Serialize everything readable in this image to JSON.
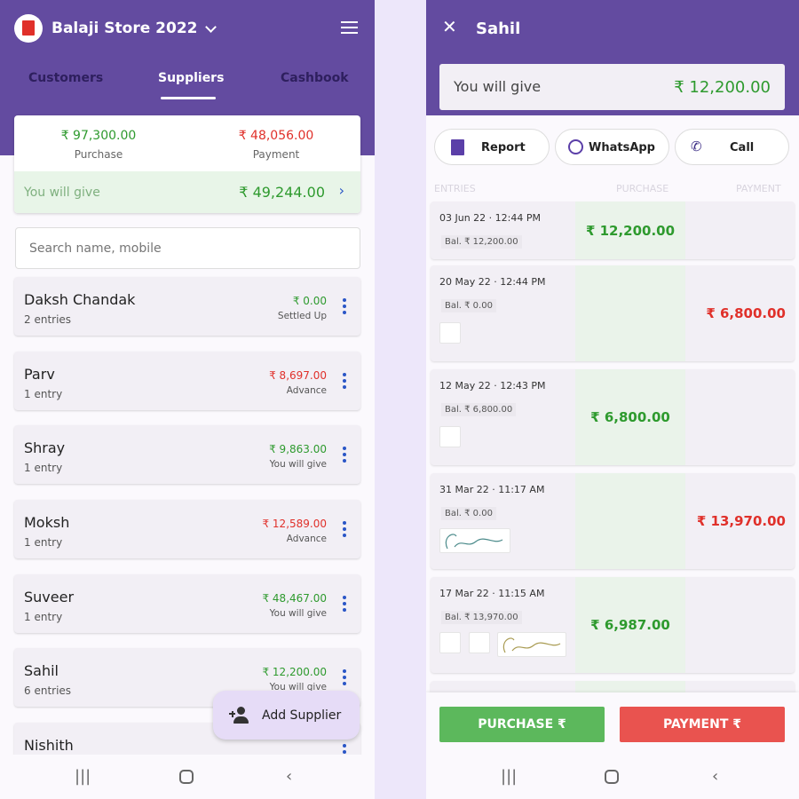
{
  "left": {
    "store_name": "Balaji Store 2022",
    "tabs": [
      {
        "label": "Customers"
      },
      {
        "label": "Suppliers",
        "active": true
      },
      {
        "label": "Cashbook"
      }
    ],
    "summary": {
      "purchase_amount": "₹ 97,300.00",
      "purchase_label": "Purchase",
      "payment_amount": "₹ 48,056.00",
      "payment_label": "Payment",
      "net_label": "You will give",
      "net_amount": "₹ 49,244.00"
    },
    "search_placeholder": "Search name, mobile",
    "suppliers": [
      {
        "name": "Daksh Chandak",
        "entries": "2 entries",
        "amount": "₹ 0.00",
        "status": "Settled Up",
        "color": "green"
      },
      {
        "name": "Parv",
        "entries": "1 entry",
        "amount": "₹ 8,697.00",
        "status": "Advance",
        "color": "red"
      },
      {
        "name": "Shray",
        "entries": "1 entry",
        "amount": "₹ 9,863.00",
        "status": "You will give",
        "color": "green"
      },
      {
        "name": "Moksh",
        "entries": "1 entry",
        "amount": "₹ 12,589.00",
        "status": "Advance",
        "color": "red"
      },
      {
        "name": "Suveer",
        "entries": "1 entry",
        "amount": "₹ 48,467.00",
        "status": "You will give",
        "color": "green"
      },
      {
        "name": "Sahil",
        "entries": "6 entries",
        "amount": "₹ 12,200.00",
        "status": "You will give",
        "color": "green"
      },
      {
        "name": "Nishith",
        "entries": "",
        "amount": "",
        "status": "",
        "color": "green"
      }
    ],
    "fab_label": "Add Supplier"
  },
  "right": {
    "title": "Sahil",
    "balance_label": "You will give",
    "balance_amount": "₹ 12,200.00",
    "actions": [
      {
        "label": "Report",
        "icon": "pdf-icon"
      },
      {
        "label": "WhatsApp",
        "icon": "whatsapp-icon"
      },
      {
        "label": "Call",
        "icon": "phone-icon"
      }
    ],
    "columns": [
      "ENTRIES",
      "PURCHASE",
      "PAYMENT"
    ],
    "entries": [
      {
        "date": "03 Jun 22 · 12:44 PM",
        "balance": "Bal. ₹ 12,200.00",
        "purchase": "₹ 12,200.00",
        "payment": ""
      },
      {
        "date": "20 May 22 · 12:44 PM",
        "balance": "Bal. ₹ 0.00",
        "purchase": "",
        "payment": "₹ 6,800.00"
      },
      {
        "date": "12 May 22 · 12:43 PM",
        "balance": "Bal. ₹ 6,800.00",
        "purchase": "₹ 6,800.00",
        "payment": ""
      },
      {
        "date": "31 Mar 22 · 11:17 AM",
        "balance": "Bal. ₹ 0.00",
        "purchase": "",
        "payment": "₹ 13,970.00"
      },
      {
        "date": "17 Mar 22 · 11:15 AM",
        "balance": "Bal. ₹ 13,970.00",
        "purchase": "₹ 6,987.00",
        "payment": ""
      }
    ],
    "purchase_button": "PURCHASE ₹",
    "payment_button": "PAYMENT ₹"
  },
  "colors": {
    "primary": "#634ba0",
    "green": "#2e9a2e",
    "red": "#e0302a",
    "purchase_btn": "#5cb85c",
    "payment_btn": "#e9534f"
  }
}
